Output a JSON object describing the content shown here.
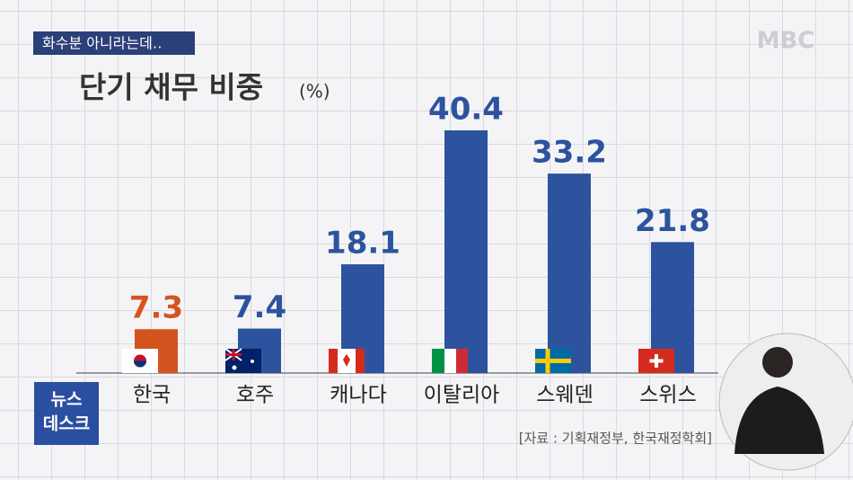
{
  "header": {
    "tag": "화수분 아니라는데‥",
    "logo": "MBC",
    "program": [
      "뉴스",
      "데스크"
    ]
  },
  "chart_data": {
    "type": "bar",
    "title": "단기 채무 비중",
    "unit": "(%)",
    "categories": [
      "한국",
      "호주",
      "캐나다",
      "이탈리아",
      "스웨덴",
      "스위스"
    ],
    "values": [
      7.3,
      7.4,
      18.1,
      40.4,
      33.2,
      21.8
    ],
    "colors": [
      "#d4541f",
      "#2d539e",
      "#2d539e",
      "#2d539e",
      "#2d539e",
      "#2d539e"
    ],
    "source": "[자료 : 기획재정부, 한국재정학회]"
  }
}
